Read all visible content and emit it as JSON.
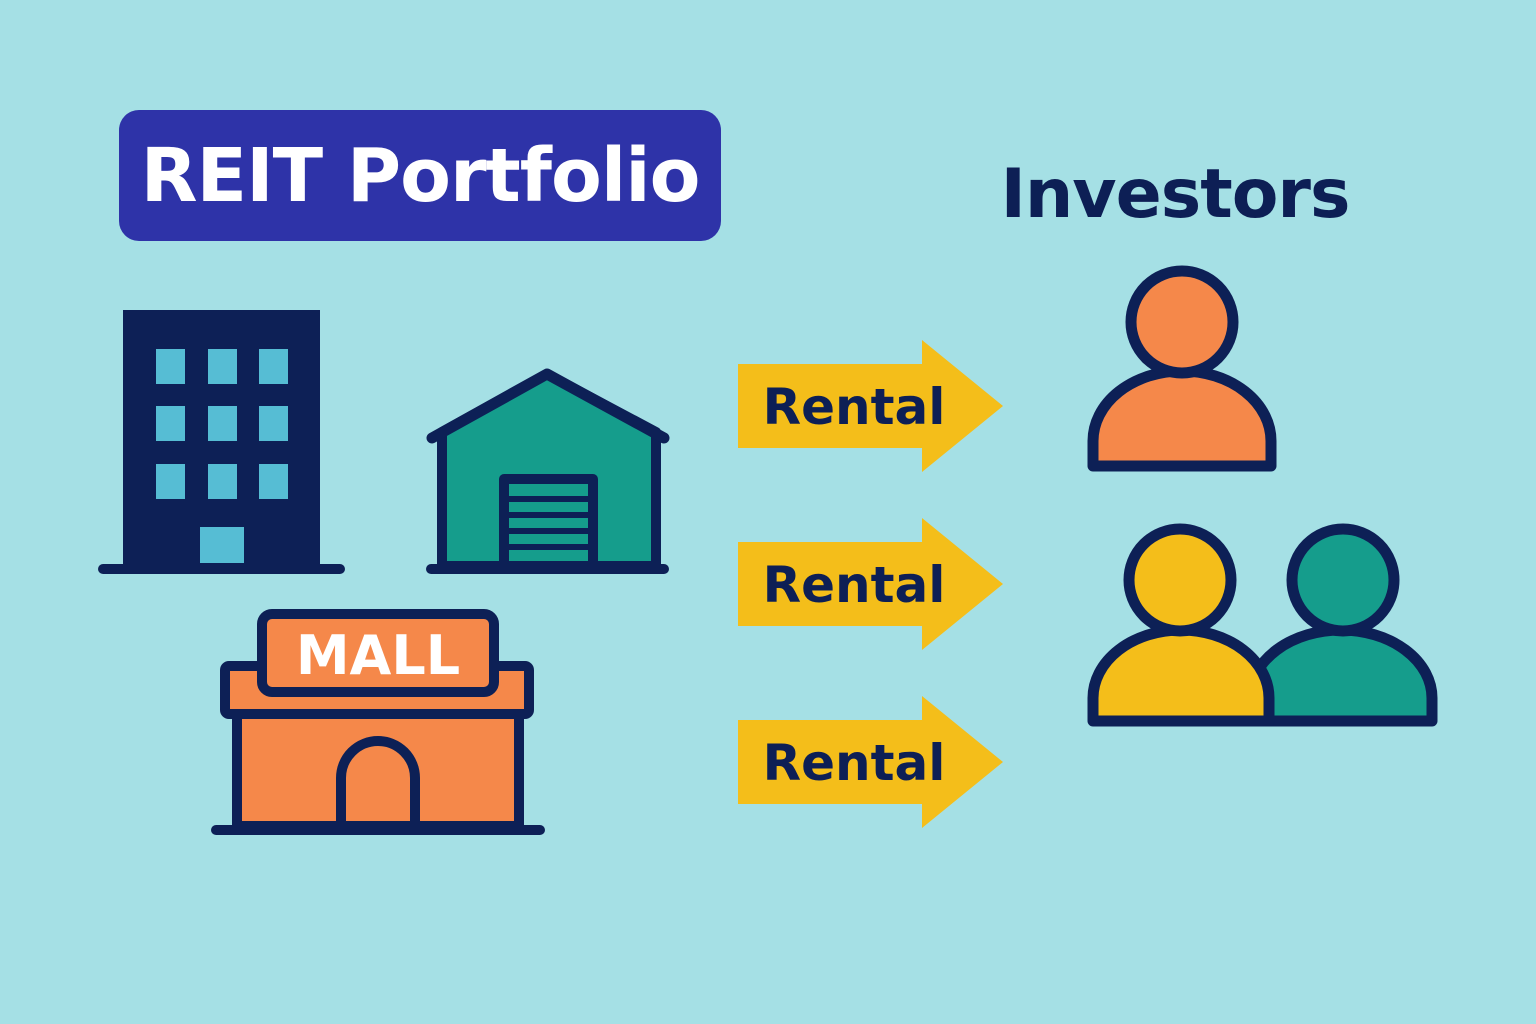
{
  "portfolio": {
    "title": "REIT Portfolio"
  },
  "properties": [
    {
      "type": "office-building"
    },
    {
      "type": "warehouse"
    },
    {
      "type": "mall",
      "sign": "MALL"
    }
  ],
  "flows": [
    {
      "label": "Rental"
    },
    {
      "label": "Rental"
    },
    {
      "label": "Rental"
    }
  ],
  "investors": {
    "title": "Investors",
    "people": [
      {
        "color": "#f5884a"
      },
      {
        "color": "#f4be1a"
      },
      {
        "color": "#159d8c"
      }
    ]
  },
  "colors": {
    "background": "#a5e0e5",
    "navy": "#0d1f55",
    "badge": "#2e33a8",
    "window": "#56bdd4",
    "warehouse": "#159d8c",
    "mall": "#f5884a",
    "arrow": "#f4be1a"
  }
}
